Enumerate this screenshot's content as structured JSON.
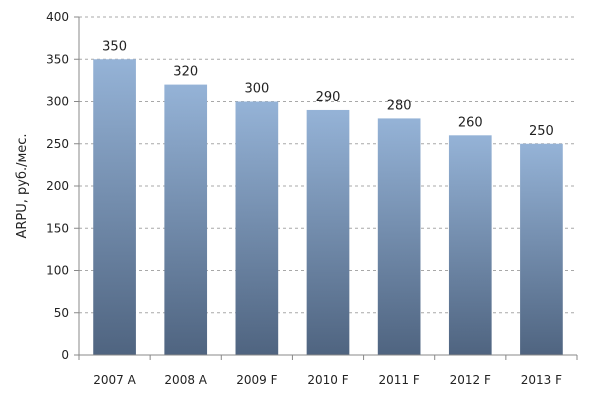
{
  "chart_data": {
    "type": "bar",
    "title": "",
    "xlabel": "",
    "ylabel": "ARPU, руб./мес.",
    "ylim": [
      0,
      400
    ],
    "yticks": [
      0,
      50,
      100,
      150,
      200,
      250,
      300,
      350,
      400
    ],
    "grid": true,
    "legend": "none",
    "categories": [
      "2007 A",
      "2008 A",
      "2009 F",
      "2010 F",
      "2011 F",
      "2012 F",
      "2013 F"
    ],
    "values": [
      350,
      320,
      300,
      290,
      280,
      260,
      250
    ],
    "data_labels": [
      "350",
      "320",
      "300",
      "290",
      "280",
      "260",
      "250"
    ],
    "colors": {
      "bar_top": "#95b3d7",
      "bar_bottom": "#4f6480",
      "grid": "#a8a8a8",
      "axis": "#888888"
    }
  }
}
